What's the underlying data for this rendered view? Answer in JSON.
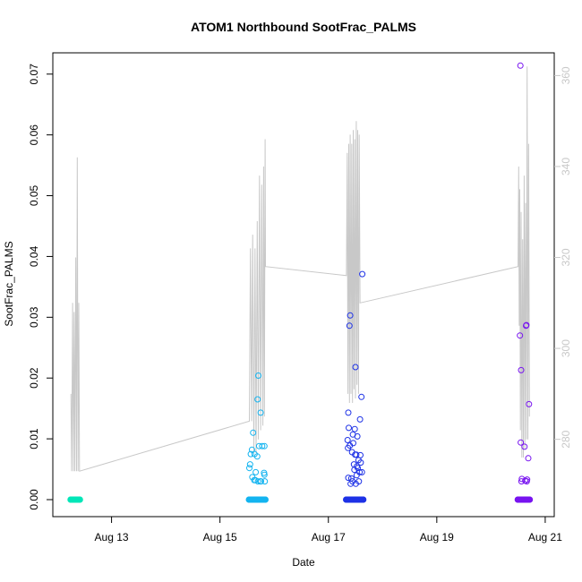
{
  "chart_data": {
    "type": "scatter",
    "title": "ATOM1 Northbound SootFrac_PALMS",
    "xlabel": "Date",
    "ylabel": "SootFrac_PALMS",
    "x_axis": {
      "type": "date",
      "range": [
        "2016-08-11T22:00",
        "2016-08-21T04:00"
      ],
      "ticks": [
        {
          "value": "2016-08-13T00:00",
          "label": "Aug 13"
        },
        {
          "value": "2016-08-15T00:00",
          "label": "Aug 15"
        },
        {
          "value": "2016-08-17T00:00",
          "label": "Aug 17"
        },
        {
          "value": "2016-08-19T00:00",
          "label": "Aug 19"
        },
        {
          "value": "2016-08-21T00:00",
          "label": "Aug 21"
        }
      ]
    },
    "y_axis_left": {
      "range": [
        -0.0028,
        0.0735
      ],
      "ticks": [
        0.0,
        0.01,
        0.02,
        0.03,
        0.04,
        0.05,
        0.06,
        0.07
      ],
      "tick_labels": [
        "0.00",
        "0.01",
        "0.02",
        "0.03",
        "0.04",
        "0.05",
        "0.06",
        "0.07"
      ]
    },
    "y_axis_right": {
      "color": "#c8c8c8",
      "range": [
        263,
        365
      ],
      "ticks": [
        280,
        300,
        320,
        340,
        360
      ],
      "tick_labels": [
        "280",
        "300",
        "320",
        "340",
        "360"
      ]
    },
    "grid": false,
    "altitude_line": {
      "color": "#c8c8c8",
      "points": [
        [
          "2016-08-12T06:00",
          290
        ],
        [
          "2016-08-12T06:20",
          273
        ],
        [
          "2016-08-12T06:45",
          310
        ],
        [
          "2016-08-12T07:05",
          273
        ],
        [
          "2016-08-12T07:25",
          308
        ],
        [
          "2016-08-12T07:45",
          273
        ],
        [
          "2016-08-12T08:10",
          320
        ],
        [
          "2016-08-12T08:30",
          273
        ],
        [
          "2016-08-12T08:50",
          342
        ],
        [
          "2016-08-12T09:10",
          273
        ],
        [
          "2016-08-12T09:30",
          310
        ],
        [
          "2016-08-12T09:50",
          273
        ],
        [
          "2016-08-15T13:00",
          284
        ],
        [
          "2016-08-15T13:30",
          322
        ],
        [
          "2016-08-15T14:00",
          284
        ],
        [
          "2016-08-15T14:30",
          325
        ],
        [
          "2016-08-15T15:00",
          277
        ],
        [
          "2016-08-15T15:30",
          322
        ],
        [
          "2016-08-15T16:00",
          277
        ],
        [
          "2016-08-15T16:30",
          328
        ],
        [
          "2016-08-15T17:00",
          280
        ],
        [
          "2016-08-15T17:30",
          338
        ],
        [
          "2016-08-15T18:00",
          282
        ],
        [
          "2016-08-15T18:30",
          336
        ],
        [
          "2016-08-15T19:00",
          283
        ],
        [
          "2016-08-15T19:20",
          340
        ],
        [
          "2016-08-15T19:40",
          285
        ],
        [
          "2016-08-15T20:00",
          346
        ],
        [
          "2016-08-15T20:10",
          318
        ],
        [
          "2016-08-17T08:00",
          316
        ],
        [
          "2016-08-17T08:20",
          343
        ],
        [
          "2016-08-17T08:40",
          290
        ],
        [
          "2016-08-17T09:00",
          345
        ],
        [
          "2016-08-17T09:20",
          288
        ],
        [
          "2016-08-17T09:40",
          347
        ],
        [
          "2016-08-17T10:00",
          290
        ],
        [
          "2016-08-17T10:20",
          345
        ],
        [
          "2016-08-17T10:40",
          288
        ],
        [
          "2016-08-17T11:00",
          348
        ],
        [
          "2016-08-17T11:20",
          291
        ],
        [
          "2016-08-17T11:40",
          346
        ],
        [
          "2016-08-17T12:00",
          289
        ],
        [
          "2016-08-17T12:20",
          350
        ],
        [
          "2016-08-17T12:40",
          292
        ],
        [
          "2016-08-17T13:00",
          348
        ],
        [
          "2016-08-17T13:20",
          290
        ],
        [
          "2016-08-17T13:40",
          347
        ],
        [
          "2016-08-17T14:00",
          310
        ],
        [
          "2016-08-20T12:00",
          318
        ],
        [
          "2016-08-20T12:15",
          340
        ],
        [
          "2016-08-20T12:30",
          305
        ],
        [
          "2016-08-20T12:45",
          335
        ],
        [
          "2016-08-20T13:00",
          282
        ],
        [
          "2016-08-20T13:20",
          330
        ],
        [
          "2016-08-20T13:40",
          276
        ],
        [
          "2016-08-20T14:00",
          324
        ],
        [
          "2016-08-20T14:20",
          276
        ],
        [
          "2016-08-20T14:40",
          338
        ],
        [
          "2016-08-20T15:00",
          278
        ],
        [
          "2016-08-20T15:20",
          332
        ],
        [
          "2016-08-20T15:40",
          280
        ],
        [
          "2016-08-20T16:00",
          362
        ],
        [
          "2016-08-20T16:20",
          280
        ],
        [
          "2016-08-20T16:40",
          345
        ],
        [
          "2016-08-20T17:00",
          285
        ]
      ]
    },
    "series": [
      {
        "color": "#00e6b8",
        "x_range": [
          "2016-08-12T05:50",
          "2016-08-12T10:00"
        ],
        "zero_count": 30,
        "points": []
      },
      {
        "color": "#14b4f0",
        "x_range": [
          "2016-08-15T12:50",
          "2016-08-15T20:10"
        ],
        "zero_count": 40,
        "points": [
          [
            "2016-08-15T17:00",
            0.0204
          ],
          [
            "2016-08-15T16:40",
            0.0165
          ],
          [
            "2016-08-15T18:00",
            0.0143
          ],
          [
            "2016-08-15T14:40",
            0.011
          ],
          [
            "2016-08-15T17:20",
            0.0088
          ],
          [
            "2016-08-15T18:40",
            0.0088
          ],
          [
            "2016-08-15T19:40",
            0.0088
          ],
          [
            "2016-08-15T14:10",
            0.0082
          ],
          [
            "2016-08-15T13:40",
            0.0075
          ],
          [
            "2016-08-15T15:20",
            0.0075
          ],
          [
            "2016-08-15T16:30",
            0.0071
          ],
          [
            "2016-08-15T13:20",
            0.0058
          ],
          [
            "2016-08-15T13:00",
            0.0052
          ],
          [
            "2016-08-15T15:50",
            0.0045
          ],
          [
            "2016-08-15T19:30",
            0.0044
          ],
          [
            "2016-08-15T19:40",
            0.0041
          ],
          [
            "2016-08-15T14:20",
            0.0037
          ],
          [
            "2016-08-15T15:10",
            0.0032
          ],
          [
            "2016-08-15T15:40",
            0.0032
          ],
          [
            "2016-08-15T16:50",
            0.003
          ],
          [
            "2016-08-15T17:50",
            0.003
          ],
          [
            "2016-08-15T18:10",
            0.003
          ],
          [
            "2016-08-15T19:50",
            0.003
          ]
        ]
      },
      {
        "color": "#1e32e6",
        "x_range": [
          "2016-08-17T07:50",
          "2016-08-17T15:30"
        ],
        "zero_count": 45,
        "points": [
          [
            "2016-08-17T15:00",
            0.0371
          ],
          [
            "2016-08-17T09:40",
            0.0303
          ],
          [
            "2016-08-17T09:20",
            0.0286
          ],
          [
            "2016-08-17T12:00",
            0.0218
          ],
          [
            "2016-08-17T14:40",
            0.0169
          ],
          [
            "2016-08-17T08:50",
            0.0143
          ],
          [
            "2016-08-17T14:00",
            0.0132
          ],
          [
            "2016-08-17T09:00",
            0.0118
          ],
          [
            "2016-08-17T11:40",
            0.0116
          ],
          [
            "2016-08-17T10:50",
            0.0107
          ],
          [
            "2016-08-17T12:50",
            0.0104
          ],
          [
            "2016-08-17T08:30",
            0.0098
          ],
          [
            "2016-08-17T11:00",
            0.0093
          ],
          [
            "2016-08-17T09:30",
            0.0089
          ],
          [
            "2016-08-17T08:40",
            0.0085
          ],
          [
            "2016-08-17T10:30",
            0.0078
          ],
          [
            "2016-08-17T11:50",
            0.0074
          ],
          [
            "2016-08-17T12:20",
            0.0074
          ],
          [
            "2016-08-17T14:10",
            0.0073
          ],
          [
            "2016-08-17T13:20",
            0.0065
          ],
          [
            "2016-08-17T14:20",
            0.0061
          ],
          [
            "2016-08-17T11:20",
            0.0058
          ],
          [
            "2016-08-17T12:40",
            0.0055
          ],
          [
            "2016-08-17T13:00",
            0.0052
          ],
          [
            "2016-08-17T11:30",
            0.0049
          ],
          [
            "2016-08-17T13:50",
            0.0045
          ],
          [
            "2016-08-17T14:50",
            0.0045
          ],
          [
            "2016-08-17T12:30",
            0.004
          ],
          [
            "2016-08-17T10:10",
            0.0035
          ],
          [
            "2016-08-17T10:40",
            0.003
          ],
          [
            "2016-08-17T13:30",
            0.003
          ],
          [
            "2016-08-17T09:50",
            0.0026
          ],
          [
            "2016-08-17T12:10",
            0.0026
          ],
          [
            "2016-08-17T08:50",
            0.0036
          ]
        ]
      },
      {
        "color": "#7814f0",
        "x_range": [
          "2016-08-20T11:50",
          "2016-08-20T17:10"
        ],
        "zero_count": 30,
        "points": [
          [
            "2016-08-20T13:00",
            0.0714
          ],
          [
            "2016-08-20T15:40",
            0.0287
          ],
          [
            "2016-08-20T15:30",
            0.0286
          ],
          [
            "2016-08-20T12:50",
            0.027
          ],
          [
            "2016-08-20T13:20",
            0.0213
          ],
          [
            "2016-08-20T16:50",
            0.0157
          ],
          [
            "2016-08-20T13:10",
            0.0094
          ],
          [
            "2016-08-20T14:50",
            0.0087
          ],
          [
            "2016-08-20T16:30",
            0.0068
          ],
          [
            "2016-08-20T13:40",
            0.0034
          ],
          [
            "2016-08-20T15:10",
            0.0031
          ],
          [
            "2016-08-20T16:00",
            0.0033
          ],
          [
            "2016-08-20T15:50",
            0.003
          ],
          [
            "2016-08-20T13:30",
            0.003
          ]
        ]
      }
    ]
  }
}
